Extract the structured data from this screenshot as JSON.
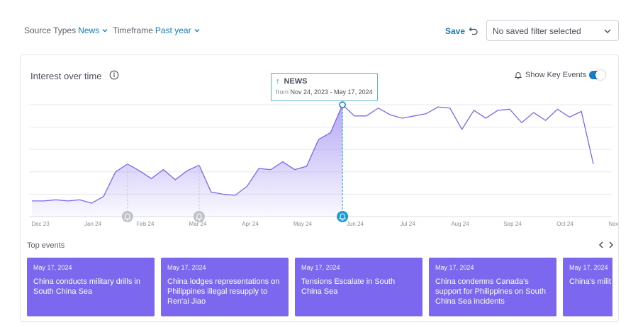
{
  "filters": {
    "source_label": "Source Types",
    "source_value": "News",
    "timeframe_label": "Timeframe",
    "timeframe_value": "Past year",
    "save_label": "Save",
    "saved_filter_value": "No saved filter selected"
  },
  "card": {
    "title": "Interest over time",
    "key_events_label": "Show Key Events",
    "key_events_enabled": true
  },
  "tooltip": {
    "series": "NEWS",
    "from_label": "from",
    "range": "Nov 24, 2023 - May 17, 2024"
  },
  "chart_data": {
    "type": "area",
    "x_ticks": [
      "Dec 23",
      "Jan 24",
      "Feb 24",
      "Mar 24",
      "Apr 24",
      "May 24",
      "Jun 24",
      "Jul 24",
      "Aug 24",
      "Sep 24",
      "Oct 24",
      "Nov 24"
    ],
    "ylim": [
      0,
      100
    ],
    "grid": true,
    "values": [
      14,
      14,
      15,
      14,
      15,
      12,
      18,
      40,
      47,
      41,
      34,
      42,
      33,
      41,
      46,
      22,
      20,
      19,
      27,
      43,
      42,
      49,
      42,
      45,
      69,
      75,
      100,
      90,
      90,
      97,
      91,
      88,
      90,
      92,
      98,
      97,
      78,
      95,
      88,
      95,
      96,
      84,
      93,
      86,
      96,
      89,
      94,
      47
    ],
    "highlight_index": 26,
    "shaded_until_index": 26,
    "key_event_markers": [
      "Jan 24",
      "Mar 24",
      "May 24"
    ],
    "active_marker": "May 24"
  },
  "top_events": {
    "label": "Top events",
    "items": [
      {
        "date": "May 17, 2024",
        "headline": "China conducts military drills in South China Sea"
      },
      {
        "date": "May 17, 2024",
        "headline": "China lodges representations on Philippines illegal resupply to Ren'ai Jiao"
      },
      {
        "date": "May 17, 2024",
        "headline": "Tensions Escalate in South China Sea"
      },
      {
        "date": "May 17, 2024",
        "headline": "China condemns Canada's support for Philippines on South China Sea incidents"
      },
      {
        "date": "May 17, 2024",
        "headline": "China's milit \"illegally\" ent waters"
      }
    ]
  },
  "colors": {
    "accent": "#1a7bbf",
    "series_line": "#7b68ee",
    "event_card": "#7b68ee",
    "marker_active": "#1a9bd7",
    "marker_inactive": "#bfc2c8"
  }
}
